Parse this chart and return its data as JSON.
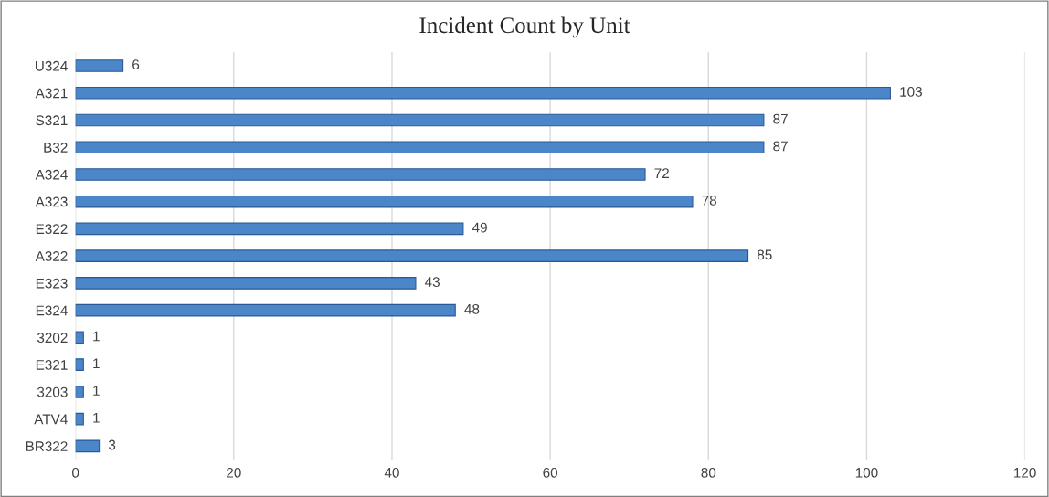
{
  "chart_data": {
    "type": "bar",
    "orientation": "horizontal",
    "title": "Incident Count by Unit",
    "categories": [
      "U324",
      "A321",
      "S321",
      "B32",
      "A324",
      "A323",
      "E322",
      "A322",
      "E323",
      "E324",
      "3202",
      "E321",
      "3203",
      "ATV4",
      "BR322"
    ],
    "values": [
      6,
      103,
      87,
      87,
      72,
      78,
      49,
      85,
      43,
      48,
      1,
      1,
      1,
      1,
      3
    ],
    "color": "#4a86c8",
    "xlim": [
      0,
      120
    ],
    "xticks": [
      0,
      20,
      40,
      60,
      80,
      100,
      120
    ],
    "grid": "x",
    "data_labels": true,
    "legend": false
  }
}
